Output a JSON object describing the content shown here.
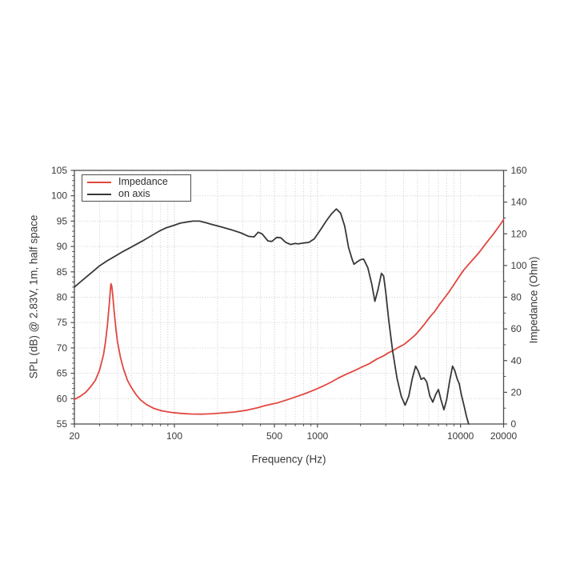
{
  "chart_data": {
    "type": "line",
    "title": "",
    "xlabel": "Frequency (Hz)",
    "ylabel_left": "SPL (dB) @ 2.83V, 1m, half space",
    "ylabel_right": "Impedance (Ohm)",
    "x_scale": "log",
    "xlim": [
      20,
      20000
    ],
    "ylim_left": [
      55,
      105
    ],
    "ylim_right": [
      0,
      160
    ],
    "grid": true,
    "x_ticks": [
      {
        "f": 20,
        "label": "20"
      },
      {
        "f": 100,
        "label": "100"
      },
      {
        "f": 500,
        "label": "500"
      },
      {
        "f": 1000,
        "label": "1000"
      },
      {
        "f": 10000,
        "label": "10000"
      },
      {
        "f": 20000,
        "label": "20000"
      }
    ],
    "y_left_ticks": [
      {
        "v": 55,
        "label": "55"
      },
      {
        "v": 60,
        "label": "60"
      },
      {
        "v": 65,
        "label": "65"
      },
      {
        "v": 70,
        "label": "70"
      },
      {
        "v": 75,
        "label": "75"
      },
      {
        "v": 80,
        "label": "80"
      },
      {
        "v": 85,
        "label": "85"
      },
      {
        "v": 90,
        "label": "90"
      },
      {
        "v": 95,
        "label": "95"
      },
      {
        "v": 100,
        "label": "100"
      },
      {
        "v": 105,
        "label": "105"
      }
    ],
    "y_right_ticks": [
      {
        "v": 0,
        "label": "0"
      },
      {
        "v": 20,
        "label": "20"
      },
      {
        "v": 40,
        "label": "40"
      },
      {
        "v": 60,
        "label": "60"
      },
      {
        "v": 80,
        "label": "80"
      },
      {
        "v": 100,
        "label": "100"
      },
      {
        "v": 120,
        "label": "120"
      },
      {
        "v": 140,
        "label": "140"
      },
      {
        "v": 160,
        "label": "160"
      }
    ],
    "legend": {
      "position": "upper left",
      "entries": [
        {
          "label": "Impedance",
          "color": "#e2473f"
        },
        {
          "label": "on axis",
          "color": "#383838"
        }
      ]
    },
    "colors": {
      "impedance": "#e2473f",
      "on_axis": "#383838",
      "grid_minor": "#cccccc",
      "grid_major": "#bdbdbd",
      "spine": "#4d4d4d",
      "tick_label": "#3a3a3a"
    },
    "series": [
      {
        "name": "Impedance",
        "axis": "right",
        "unit": "Ohm",
        "color": "#e2473f",
        "points": [
          [
            20,
            15.5
          ],
          [
            22,
            17.5
          ],
          [
            24,
            20
          ],
          [
            26,
            23.5
          ],
          [
            28,
            27.5
          ],
          [
            30,
            34
          ],
          [
            32,
            44
          ],
          [
            33,
            52
          ],
          [
            34,
            62
          ],
          [
            35,
            75
          ],
          [
            35.7,
            85
          ],
          [
            36,
            88.5
          ],
          [
            36.5,
            87
          ],
          [
            37,
            82
          ],
          [
            38,
            70
          ],
          [
            39,
            60
          ],
          [
            40,
            52
          ],
          [
            42,
            42
          ],
          [
            44,
            35
          ],
          [
            47,
            27.5
          ],
          [
            50,
            23
          ],
          [
            54,
            18.5
          ],
          [
            58,
            15.2
          ],
          [
            64,
            12.2
          ],
          [
            72,
            9.8
          ],
          [
            82,
            8.3
          ],
          [
            95,
            7.3
          ],
          [
            110,
            6.7
          ],
          [
            130,
            6.3
          ],
          [
            155,
            6.2
          ],
          [
            185,
            6.5
          ],
          [
            220,
            7
          ],
          [
            260,
            7.5
          ],
          [
            320,
            8.7
          ],
          [
            380,
            10.2
          ],
          [
            430,
            11.6
          ],
          [
            520,
            13.2
          ],
          [
            600,
            15
          ],
          [
            700,
            17
          ],
          [
            820,
            19.2
          ],
          [
            950,
            21.5
          ],
          [
            1100,
            24
          ],
          [
            1250,
            26.5
          ],
          [
            1400,
            29
          ],
          [
            1600,
            31.5
          ],
          [
            1800,
            33.5
          ],
          [
            2050,
            36
          ],
          [
            2300,
            38
          ],
          [
            2600,
            41
          ],
          [
            2900,
            43
          ],
          [
            3150,
            45
          ],
          [
            3400,
            46.5
          ],
          [
            3700,
            48.5
          ],
          [
            4000,
            50
          ],
          [
            4400,
            53
          ],
          [
            4800,
            56
          ],
          [
            5200,
            59.5
          ],
          [
            5600,
            63
          ],
          [
            6100,
            67.5
          ],
          [
            6600,
            71
          ],
          [
            7200,
            76
          ],
          [
            7800,
            80
          ],
          [
            8400,
            84
          ],
          [
            9000,
            88
          ],
          [
            9700,
            92.5
          ],
          [
            10500,
            97
          ],
          [
            11200,
            100
          ],
          [
            12000,
            103
          ],
          [
            13000,
            106.5
          ],
          [
            13700,
            109
          ],
          [
            14800,
            113
          ],
          [
            16000,
            117
          ],
          [
            17000,
            120
          ],
          [
            18000,
            123
          ],
          [
            19000,
            126
          ],
          [
            20000,
            129
          ]
        ]
      },
      {
        "name": "on axis",
        "axis": "left",
        "unit": "dB",
        "color": "#383838",
        "points": [
          [
            20,
            82
          ],
          [
            22,
            83
          ],
          [
            24,
            83.9
          ],
          [
            27,
            85.1
          ],
          [
            30,
            86.2
          ],
          [
            34,
            87.2
          ],
          [
            38,
            88
          ],
          [
            43,
            88.9
          ],
          [
            48,
            89.6
          ],
          [
            54,
            90.4
          ],
          [
            60,
            91.1
          ],
          [
            68,
            92
          ],
          [
            78,
            93
          ],
          [
            88,
            93.7
          ],
          [
            100,
            94.2
          ],
          [
            110,
            94.6
          ],
          [
            120,
            94.8
          ],
          [
            135,
            95
          ],
          [
            150,
            95
          ],
          [
            165,
            94.7
          ],
          [
            180,
            94.4
          ],
          [
            210,
            93.9
          ],
          [
            250,
            93.3
          ],
          [
            290,
            92.7
          ],
          [
            330,
            92
          ],
          [
            360,
            91.9
          ],
          [
            385,
            92.8
          ],
          [
            410,
            92.5
          ],
          [
            450,
            91.1
          ],
          [
            480,
            91
          ],
          [
            520,
            91.8
          ],
          [
            555,
            91.7
          ],
          [
            600,
            90.8
          ],
          [
            650,
            90.4
          ],
          [
            700,
            90.6
          ],
          [
            730,
            90.5
          ],
          [
            800,
            90.7
          ],
          [
            870,
            90.8
          ],
          [
            950,
            91.5
          ],
          [
            1050,
            93.3
          ],
          [
            1150,
            95
          ],
          [
            1250,
            96.4
          ],
          [
            1355,
            97.4
          ],
          [
            1450,
            96.6
          ],
          [
            1550,
            94
          ],
          [
            1650,
            89.8
          ],
          [
            1740,
            87.6
          ],
          [
            1800,
            86.5
          ],
          [
            1900,
            87
          ],
          [
            2000,
            87.4
          ],
          [
            2100,
            87.5
          ],
          [
            2250,
            85.8
          ],
          [
            2400,
            82.5
          ],
          [
            2520,
            79.2
          ],
          [
            2650,
            81.5
          ],
          [
            2800,
            84.7
          ],
          [
            2900,
            84.2
          ],
          [
            3000,
            81
          ],
          [
            3150,
            75.5
          ],
          [
            3350,
            69.5
          ],
          [
            3600,
            64
          ],
          [
            3850,
            60.5
          ],
          [
            4100,
            58.7
          ],
          [
            4350,
            60.5
          ],
          [
            4600,
            64
          ],
          [
            4850,
            66.4
          ],
          [
            5050,
            65.5
          ],
          [
            5300,
            63.8
          ],
          [
            5550,
            64.1
          ],
          [
            5800,
            63.3
          ],
          [
            6100,
            60.5
          ],
          [
            6400,
            59.3
          ],
          [
            6700,
            60.8
          ],
          [
            7000,
            61.8
          ],
          [
            7300,
            59.8
          ],
          [
            7650,
            57.8
          ],
          [
            8000,
            59.8
          ],
          [
            8400,
            63.5
          ],
          [
            8800,
            66.4
          ],
          [
            9100,
            65.6
          ],
          [
            9500,
            63.8
          ],
          [
            9800,
            62.9
          ],
          [
            10100,
            61
          ],
          [
            10600,
            58.5
          ],
          [
            11000,
            56.5
          ],
          [
            11400,
            55
          ]
        ]
      }
    ]
  }
}
